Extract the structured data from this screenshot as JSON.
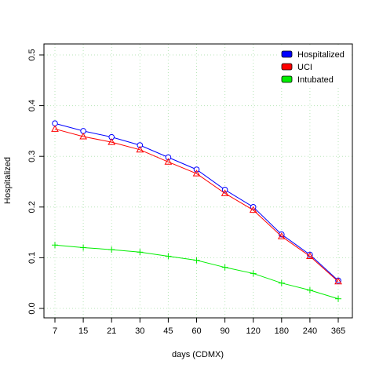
{
  "chart_data": {
    "type": "line",
    "xlabel": "days (CDMX)",
    "ylabel": "Hospitalized",
    "categories": [
      "7",
      "15",
      "21",
      "30",
      "45",
      "60",
      "90",
      "120",
      "180",
      "240",
      "365"
    ],
    "ylim": [
      0,
      0.5
    ],
    "yticks": [
      "0.0",
      "0.1",
      "0.2",
      "0.3",
      "0.4",
      "0.5"
    ],
    "grid": true,
    "legend_position": "top-right",
    "series": [
      {
        "name": "Hospitalized",
        "color": "#0000ff",
        "marker": "circle",
        "values": [
          0.365,
          0.35,
          0.338,
          0.322,
          0.298,
          0.274,
          0.234,
          0.2,
          0.146,
          0.106,
          0.055
        ]
      },
      {
        "name": "UCI",
        "color": "#ff0000",
        "marker": "triangle",
        "values": [
          0.354,
          0.339,
          0.328,
          0.313,
          0.289,
          0.266,
          0.227,
          0.194,
          0.142,
          0.103,
          0.053
        ]
      },
      {
        "name": "Intubated",
        "color": "#00ee00",
        "marker": "plus",
        "values": [
          0.125,
          0.12,
          0.116,
          0.111,
          0.103,
          0.095,
          0.081,
          0.069,
          0.05,
          0.036,
          0.019
        ]
      }
    ]
  }
}
